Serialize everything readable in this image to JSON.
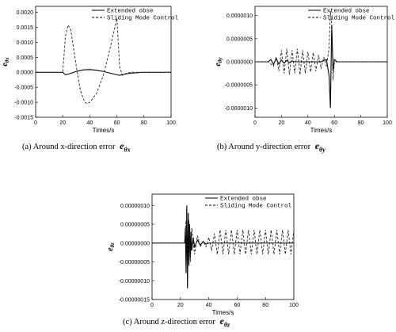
{
  "chart_data": [
    {
      "type": "line",
      "ylabel": "e",
      "ylabel_sub": "θx",
      "xlabel": "Times/s",
      "xlim": [
        0,
        100
      ],
      "ylim": [
        -0.0015,
        0.0022
      ],
      "xticks": [
        "0",
        "20",
        "40",
        "60",
        "80",
        "100"
      ],
      "yticks": [
        "-0.0015",
        "-0.0010",
        "-0.0005",
        "0.0000",
        "0.0005",
        "0.0010",
        "0.0015",
        "0.0020"
      ],
      "legend": "top-right",
      "series": [
        {
          "name": "Extended obse",
          "style": "solid",
          "x": [
            0,
            20,
            22,
            25,
            30,
            35,
            40,
            45,
            50,
            55,
            60,
            62,
            65,
            70,
            80,
            90,
            100
          ],
          "y": [
            0,
            0,
            -8e-05,
            -5e-05,
            3e-05,
            8e-05,
            9e-05,
            7e-05,
            3e-05,
            -3e-05,
            -8e-05,
            -0.0001,
            -7e-05,
            -3e-05,
            0,
            0,
            0
          ]
        },
        {
          "name": "Sliding Mode Control",
          "style": "dashed",
          "x": [
            0,
            20,
            22,
            24,
            26,
            28,
            30,
            33,
            36,
            38,
            40,
            45,
            50,
            55,
            58,
            60,
            62,
            64,
            66,
            70,
            80,
            90,
            100
          ],
          "y": [
            0,
            0,
            0.0012,
            0.00158,
            0.0014,
            0.0008,
            0.0002,
            -0.0006,
            -0.00098,
            -0.00105,
            -0.001,
            -0.0007,
            -0.0001,
            0.0008,
            0.0014,
            0.0018,
            0.0002,
            -0.0001,
            -5e-05,
            0,
            0,
            0,
            0
          ]
        }
      ],
      "caption_text": "(a) Around x-direction error ",
      "caption_sym": "e",
      "caption_sub": "θx"
    },
    {
      "type": "line",
      "ylabel": "e",
      "ylabel_sub": "θy",
      "xlabel": "Times/s",
      "xlim": [
        0,
        100
      ],
      "ylim": [
        -1.2e-06,
        1.2e-06
      ],
      "xticks": [
        "0",
        "20",
        "40",
        "60",
        "80",
        "100"
      ],
      "yticks": [
        "-0.0000010",
        "-0.0000005",
        "0.0000000",
        "0.0000005",
        "0.0000010"
      ],
      "legend": "top-right",
      "series": [
        {
          "name": "Extended obse",
          "style": "solid",
          "x": [
            0,
            10,
            12,
            14,
            16,
            18,
            20,
            22,
            24,
            26,
            28,
            30,
            35,
            40,
            45,
            50,
            54,
            56,
            57,
            58,
            59,
            60,
            62,
            65,
            70,
            80,
            100
          ],
          "y": [
            0,
            0,
            5e-08,
            -6e-08,
            8e-08,
            -5e-08,
            4e-08,
            -3e-08,
            3e-08,
            -2e-08,
            2e-08,
            0,
            0,
            0,
            0,
            0,
            5e-08,
            -3e-07,
            -1e-06,
            8e-07,
            -2e-07,
            5e-08,
            0,
            0,
            0,
            0,
            0
          ]
        },
        {
          "name": "Sliding Mode Control",
          "style": "dashed",
          "x": [
            0,
            10,
            12,
            14,
            16,
            18,
            20,
            22,
            24,
            26,
            28,
            30,
            32,
            34,
            36,
            38,
            40,
            42,
            44,
            46,
            48,
            50,
            52,
            54,
            56,
            57,
            58,
            59,
            60,
            65,
            70,
            80,
            100
          ],
          "y": [
            0,
            0,
            -5e-08,
            -1e-07,
            1e-07,
            -2e-07,
            2.5e-07,
            -2.5e-07,
            2.8e-07,
            -2.8e-07,
            2.5e-07,
            -2.5e-07,
            2.8e-07,
            -2.8e-07,
            2.5e-07,
            -2.5e-07,
            2.2e-07,
            -2.2e-07,
            2e-07,
            -2e-07,
            1.5e-07,
            -1.5e-07,
            1e-07,
            -1e-07,
            3e-07,
            1.1e-06,
            8e-07,
            -4e-07,
            0,
            0,
            0,
            0,
            0
          ]
        }
      ],
      "caption_text": "(b) Around y-direction error ",
      "caption_sym": "e",
      "caption_sub": "θy"
    },
    {
      "type": "line",
      "ylabel": "e",
      "ylabel_sub": "θz",
      "xlabel": "Times/s",
      "xlim": [
        0,
        100
      ],
      "ylim": [
        -1.5e-07,
        1.3e-07
      ],
      "xticks": [
        "0",
        "20",
        "40",
        "60",
        "80",
        "100"
      ],
      "yticks": [
        "-0.00000015",
        "-0.00000010",
        "-0.00000005",
        "0.00000000",
        "0.00000005",
        "0.00000010"
      ],
      "legend": "top-right",
      "series": [
        {
          "name": "Extended obse",
          "style": "solid",
          "x": [
            0,
            23,
            23.5,
            24,
            24.5,
            25,
            25.5,
            26,
            26.5,
            27,
            27.5,
            28,
            29,
            30,
            32,
            34,
            36,
            38,
            40,
            50,
            60,
            70,
            80,
            90,
            100
          ],
          "y": [
            0,
            0,
            4e-08,
            -8e-08,
            1e-07,
            -1.2e-07,
            8e-08,
            -6e-08,
            5e-08,
            -4e-08,
            3e-08,
            -2e-08,
            1.5e-08,
            -1e-08,
            8e-09,
            -5e-09,
            4e-09,
            -3e-09,
            0,
            0,
            0,
            0,
            0,
            0,
            0
          ]
        },
        {
          "name": "Sliding Mode Control",
          "style": "dashed",
          "x": [
            0,
            23,
            24,
            25,
            26,
            27,
            28,
            30,
            32,
            34,
            36,
            38,
            40,
            42,
            44,
            46,
            48,
            50,
            52,
            54,
            56,
            58,
            60,
            62,
            64,
            66,
            68,
            70,
            72,
            74,
            76,
            78,
            80,
            82,
            84,
            86,
            88,
            90,
            92,
            94,
            96,
            98,
            100
          ],
          "y": [
            0,
            0,
            6e-08,
            -8e-08,
            6e-08,
            -5e-08,
            4e-08,
            -3e-08,
            2e-08,
            -1e-08,
            5e-09,
            -1e-08,
            1.5e-08,
            -2e-08,
            2.5e-08,
            -3e-08,
            3.5e-08,
            -3e-08,
            3.5e-08,
            -3e-08,
            3.5e-08,
            -3e-08,
            3.5e-08,
            -3e-08,
            3.5e-08,
            -3e-08,
            3.5e-08,
            -3e-08,
            3.5e-08,
            -3e-08,
            3.5e-08,
            -3e-08,
            3.5e-08,
            -3e-08,
            3.5e-08,
            -3e-08,
            3.5e-08,
            -3e-08,
            3.5e-08,
            -3e-08,
            3.5e-08,
            -3e-08,
            3.5e-08
          ]
        }
      ],
      "caption_text": "(c) Around z-direction error ",
      "caption_sym": "e",
      "caption_sub": "θz"
    }
  ]
}
